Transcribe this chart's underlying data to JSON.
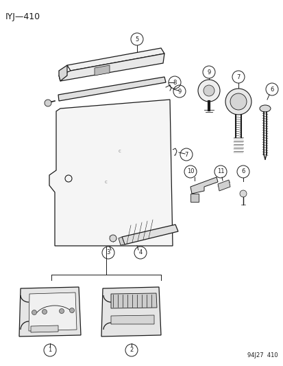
{
  "title": "IYJ—410",
  "footer": "94J27  410",
  "bg_color": "#ffffff",
  "dark": "#1a1a1a"
}
